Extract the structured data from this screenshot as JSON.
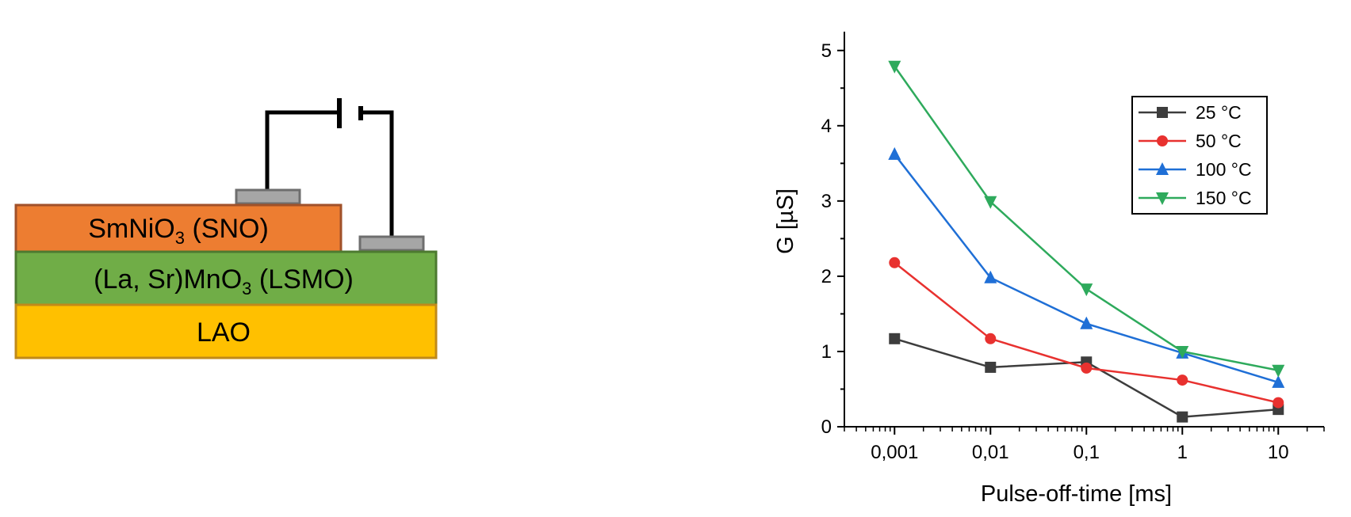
{
  "diagram": {
    "layers": [
      {
        "key": "sno",
        "text": "SmNiO",
        "sub": "3",
        "suffix": " (SNO)",
        "fill": "#ED7D31",
        "stroke": "#A0512A"
      },
      {
        "key": "lsmo",
        "text": "(La, Sr)MnO",
        "sub": "3",
        "suffix": " (LSMO)",
        "fill": "#70AD47",
        "stroke": "#4D7A30"
      },
      {
        "key": "lao",
        "text": "LAO",
        "sub": "",
        "suffix": "",
        "fill": "#FFC000",
        "stroke": "#C08A1A"
      }
    ],
    "electrode_color": "#A6A6A6",
    "wire_color": "#000000"
  },
  "chart_data": {
    "type": "line",
    "xscale": "log",
    "x": [
      0.001,
      0.01,
      0.1,
      1,
      10
    ],
    "xlim": [
      0.0003,
      30
    ],
    "ylim": [
      0,
      5.25
    ],
    "xticks": [
      "0,001",
      "0,01",
      "0,1",
      "1",
      "10"
    ],
    "yticks": [
      "0",
      "1",
      "2",
      "3",
      "4",
      "5"
    ],
    "xlabel": "Pulse-off-time [ms]",
    "ylabel": "G [µS]",
    "legend_position": "top-right",
    "series": [
      {
        "name": "25 °C",
        "color": "#3D3D3D",
        "marker": "square",
        "values": [
          1.17,
          0.79,
          0.86,
          0.13,
          0.23
        ]
      },
      {
        "name": "50 °C",
        "color": "#E8312F",
        "marker": "circle",
        "values": [
          2.18,
          1.17,
          0.78,
          0.62,
          0.32
        ]
      },
      {
        "name": "100 °C",
        "color": "#1F6FD6",
        "marker": "triangle-up",
        "values": [
          3.62,
          1.98,
          1.37,
          0.98,
          0.59
        ]
      },
      {
        "name": "150 °C",
        "color": "#2EAA5C",
        "marker": "triangle-down",
        "values": [
          4.79,
          2.99,
          1.83,
          1.0,
          0.75
        ]
      }
    ]
  }
}
